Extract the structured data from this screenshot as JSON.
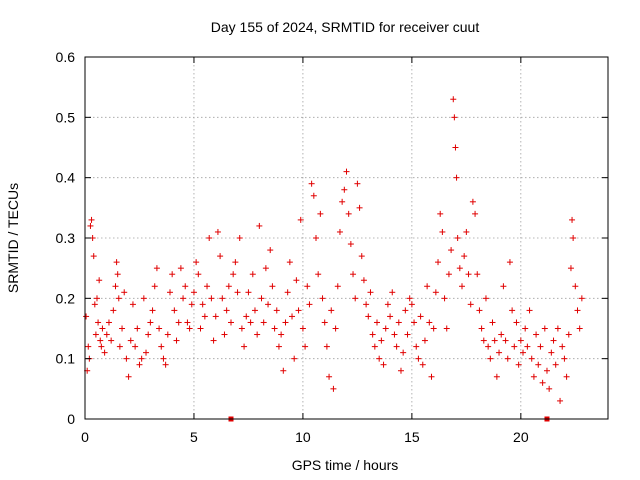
{
  "chart_data": {
    "type": "scatter",
    "title": "Day 155 of 2024, SRMTID for receiver cuut",
    "xlabel": "GPS time / hours",
    "ylabel": "SRMTID / TECUs",
    "xlim": [
      0,
      24
    ],
    "ylim": [
      0,
      0.6
    ],
    "x_ticks": [
      0,
      5,
      10,
      15,
      20
    ],
    "x_tick_labels": [
      "0",
      "5",
      "10",
      "15",
      "20"
    ],
    "y_ticks": [
      0,
      0.1,
      0.2,
      0.3,
      0.4,
      0.5,
      0.6
    ],
    "y_tick_labels": [
      "0",
      "0.1",
      "0.2",
      "0.3",
      "0.4",
      "0.5",
      "0.6"
    ],
    "grid": true,
    "marker": "+",
    "color": "#e00000",
    "series": [
      {
        "name": "SRMTID",
        "points": [
          [
            0.05,
            0.17
          ],
          [
            0.1,
            0.08
          ],
          [
            0.15,
            0.12
          ],
          [
            0.2,
            0.1
          ],
          [
            0.25,
            0.32
          ],
          [
            0.3,
            0.33
          ],
          [
            0.35,
            0.3
          ],
          [
            0.4,
            0.27
          ],
          [
            0.45,
            0.19
          ],
          [
            0.5,
            0.14
          ],
          [
            0.55,
            0.2
          ],
          [
            0.6,
            0.16
          ],
          [
            0.65,
            0.23
          ],
          [
            0.7,
            0.13
          ],
          [
            0.75,
            0.12
          ],
          [
            0.8,
            0.15
          ],
          [
            0.9,
            0.11
          ],
          [
            1.0,
            0.14
          ],
          [
            1.1,
            0.16
          ],
          [
            1.2,
            0.13
          ],
          [
            1.3,
            0.18
          ],
          [
            1.4,
            0.22
          ],
          [
            1.45,
            0.26
          ],
          [
            1.5,
            0.24
          ],
          [
            1.55,
            0.2
          ],
          [
            1.6,
            0.12
          ],
          [
            1.7,
            0.15
          ],
          [
            1.8,
            0.21
          ],
          [
            1.9,
            0.1
          ],
          [
            2.0,
            0.07
          ],
          [
            2.1,
            0.13
          ],
          [
            2.2,
            0.19
          ],
          [
            2.3,
            0.12
          ],
          [
            2.4,
            0.15
          ],
          [
            2.5,
            0.09
          ],
          [
            2.6,
            0.1
          ],
          [
            2.7,
            0.2
          ],
          [
            2.8,
            0.11
          ],
          [
            2.9,
            0.14
          ],
          [
            3.0,
            0.16
          ],
          [
            3.1,
            0.18
          ],
          [
            3.2,
            0.22
          ],
          [
            3.3,
            0.25
          ],
          [
            3.4,
            0.15
          ],
          [
            3.5,
            0.12
          ],
          [
            3.6,
            0.1
          ],
          [
            3.7,
            0.09
          ],
          [
            3.8,
            0.14
          ],
          [
            3.9,
            0.21
          ],
          [
            4.0,
            0.24
          ],
          [
            4.1,
            0.18
          ],
          [
            4.2,
            0.13
          ],
          [
            4.3,
            0.16
          ],
          [
            4.4,
            0.25
          ],
          [
            4.5,
            0.2
          ],
          [
            4.6,
            0.22
          ],
          [
            4.7,
            0.16
          ],
          [
            4.8,
            0.15
          ],
          [
            4.9,
            0.19
          ],
          [
            5.0,
            0.21
          ],
          [
            5.1,
            0.26
          ],
          [
            5.2,
            0.24
          ],
          [
            5.3,
            0.15
          ],
          [
            5.4,
            0.19
          ],
          [
            5.5,
            0.17
          ],
          [
            5.6,
            0.22
          ],
          [
            5.7,
            0.3
          ],
          [
            5.8,
            0.2
          ],
          [
            5.9,
            0.13
          ],
          [
            6.0,
            0.17
          ],
          [
            6.1,
            0.31
          ],
          [
            6.2,
            0.27
          ],
          [
            6.3,
            0.2
          ],
          [
            6.4,
            0.14
          ],
          [
            6.5,
            0.18
          ],
          [
            6.6,
            0.22
          ],
          [
            6.7,
            0.16
          ],
          [
            6.8,
            0.24
          ],
          [
            6.9,
            0.26
          ],
          [
            7.0,
            0.21
          ],
          [
            7.1,
            0.3
          ],
          [
            7.2,
            0.15
          ],
          [
            7.3,
            0.12
          ],
          [
            7.4,
            0.17
          ],
          [
            7.5,
            0.21
          ],
          [
            7.6,
            0.16
          ],
          [
            7.7,
            0.24
          ],
          [
            7.8,
            0.18
          ],
          [
            7.9,
            0.14
          ],
          [
            8.0,
            0.32
          ],
          [
            8.1,
            0.2
          ],
          [
            8.2,
            0.16
          ],
          [
            8.3,
            0.25
          ],
          [
            8.4,
            0.19
          ],
          [
            8.5,
            0.28
          ],
          [
            8.6,
            0.22
          ],
          [
            8.7,
            0.15
          ],
          [
            8.8,
            0.18
          ],
          [
            8.9,
            0.12
          ],
          [
            9.0,
            0.14
          ],
          [
            9.1,
            0.08
          ],
          [
            9.2,
            0.16
          ],
          [
            9.3,
            0.21
          ],
          [
            9.4,
            0.26
          ],
          [
            9.5,
            0.17
          ],
          [
            9.6,
            0.1
          ],
          [
            9.7,
            0.23
          ],
          [
            9.8,
            0.18
          ],
          [
            9.9,
            0.33
          ],
          [
            10.0,
            0.15
          ],
          [
            10.1,
            0.12
          ],
          [
            10.2,
            0.22
          ],
          [
            10.3,
            0.19
          ],
          [
            10.4,
            0.39
          ],
          [
            10.5,
            0.37
          ],
          [
            10.6,
            0.3
          ],
          [
            10.7,
            0.24
          ],
          [
            10.8,
            0.34
          ],
          [
            10.9,
            0.2
          ],
          [
            11.0,
            0.16
          ],
          [
            11.1,
            0.12
          ],
          [
            11.2,
            0.07
          ],
          [
            11.3,
            0.18
          ],
          [
            11.4,
            0.05
          ],
          [
            11.5,
            0.15
          ],
          [
            11.6,
            0.22
          ],
          [
            11.7,
            0.31
          ],
          [
            11.8,
            0.36
          ],
          [
            11.9,
            0.38
          ],
          [
            12.0,
            0.41
          ],
          [
            12.1,
            0.34
          ],
          [
            12.2,
            0.29
          ],
          [
            12.3,
            0.24
          ],
          [
            12.4,
            0.2
          ],
          [
            12.5,
            0.39
          ],
          [
            12.6,
            0.35
          ],
          [
            12.7,
            0.27
          ],
          [
            12.8,
            0.23
          ],
          [
            12.9,
            0.19
          ],
          [
            13.0,
            0.17
          ],
          [
            13.1,
            0.21
          ],
          [
            13.2,
            0.14
          ],
          [
            13.3,
            0.12
          ],
          [
            13.4,
            0.16
          ],
          [
            13.5,
            0.1
          ],
          [
            13.6,
            0.13
          ],
          [
            13.7,
            0.09
          ],
          [
            13.8,
            0.15
          ],
          [
            13.9,
            0.19
          ],
          [
            14.0,
            0.17
          ],
          [
            14.1,
            0.21
          ],
          [
            14.2,
            0.14
          ],
          [
            14.3,
            0.12
          ],
          [
            14.4,
            0.16
          ],
          [
            14.5,
            0.08
          ],
          [
            14.6,
            0.11
          ],
          [
            14.7,
            0.18
          ],
          [
            14.8,
            0.14
          ],
          [
            14.9,
            0.2
          ],
          [
            15.0,
            0.19
          ],
          [
            15.1,
            0.16
          ],
          [
            15.2,
            0.12
          ],
          [
            15.3,
            0.1
          ],
          [
            15.4,
            0.17
          ],
          [
            15.5,
            0.09
          ],
          [
            15.6,
            0.13
          ],
          [
            15.7,
            0.22
          ],
          [
            15.8,
            0.16
          ],
          [
            15.9,
            0.07
          ],
          [
            16.0,
            0.15
          ],
          [
            16.1,
            0.21
          ],
          [
            16.2,
            0.26
          ],
          [
            16.3,
            0.34
          ],
          [
            16.4,
            0.31
          ],
          [
            16.5,
            0.2
          ],
          [
            16.6,
            0.15
          ],
          [
            16.7,
            0.24
          ],
          [
            16.8,
            0.28
          ],
          [
            16.9,
            0.53
          ],
          [
            16.95,
            0.5
          ],
          [
            17.0,
            0.45
          ],
          [
            17.05,
            0.4
          ],
          [
            17.1,
            0.3
          ],
          [
            17.2,
            0.25
          ],
          [
            17.3,
            0.22
          ],
          [
            17.4,
            0.27
          ],
          [
            17.5,
            0.31
          ],
          [
            17.6,
            0.24
          ],
          [
            17.7,
            0.19
          ],
          [
            17.8,
            0.36
          ],
          [
            17.9,
            0.34
          ],
          [
            18.0,
            0.24
          ],
          [
            18.1,
            0.18
          ],
          [
            18.2,
            0.15
          ],
          [
            18.3,
            0.13
          ],
          [
            18.4,
            0.2
          ],
          [
            18.5,
            0.12
          ],
          [
            18.6,
            0.1
          ],
          [
            18.7,
            0.16
          ],
          [
            18.8,
            0.13
          ],
          [
            18.9,
            0.07
          ],
          [
            19.0,
            0.11
          ],
          [
            19.1,
            0.14
          ],
          [
            19.2,
            0.22
          ],
          [
            19.3,
            0.13
          ],
          [
            19.4,
            0.1
          ],
          [
            19.5,
            0.26
          ],
          [
            19.6,
            0.18
          ],
          [
            19.7,
            0.12
          ],
          [
            19.8,
            0.16
          ],
          [
            19.9,
            0.09
          ],
          [
            20.0,
            0.13
          ],
          [
            20.1,
            0.11
          ],
          [
            20.2,
            0.15
          ],
          [
            20.3,
            0.12
          ],
          [
            20.4,
            0.18
          ],
          [
            20.5,
            0.1
          ],
          [
            20.6,
            0.07
          ],
          [
            20.7,
            0.14
          ],
          [
            20.8,
            0.09
          ],
          [
            20.9,
            0.12
          ],
          [
            21.0,
            0.06
          ],
          [
            21.1,
            0.15
          ],
          [
            21.2,
            0.08
          ],
          [
            21.3,
            0.05
          ],
          [
            21.4,
            0.11
          ],
          [
            21.5,
            0.13
          ],
          [
            21.6,
            0.09
          ],
          [
            21.7,
            0.15
          ],
          [
            21.8,
            0.03
          ],
          [
            21.9,
            0.12
          ],
          [
            22.0,
            0.1
          ],
          [
            22.1,
            0.07
          ],
          [
            22.2,
            0.14
          ],
          [
            22.3,
            0.25
          ],
          [
            22.35,
            0.33
          ],
          [
            22.4,
            0.3
          ],
          [
            22.5,
            0.22
          ],
          [
            22.6,
            0.18
          ],
          [
            22.7,
            0.15
          ],
          [
            22.8,
            0.2
          ]
        ]
      }
    ],
    "markers_on_axis": [
      6.7,
      21.2
    ]
  }
}
